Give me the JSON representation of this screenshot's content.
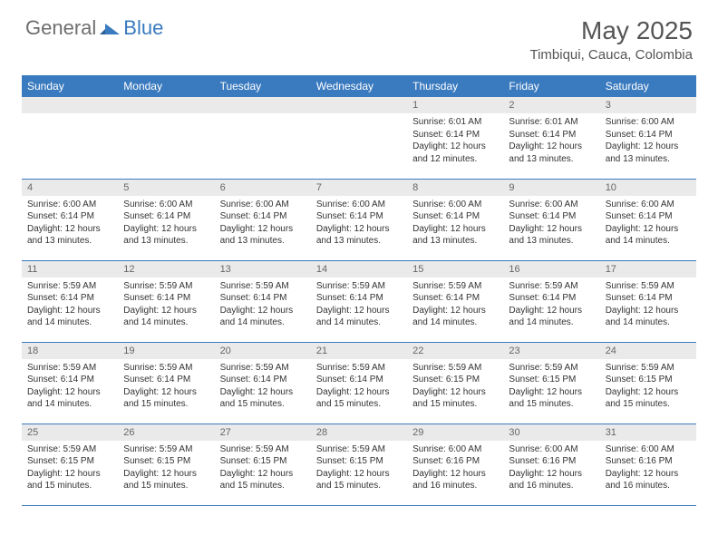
{
  "logo": {
    "text1": "General",
    "text2": "Blue"
  },
  "title": "May 2025",
  "location": "Timbiqui, Cauca, Colombia",
  "colors": {
    "header_bg": "#3a7abf",
    "header_text": "#ffffff",
    "daynum_bg": "#eaeaea",
    "daynum_text": "#666666",
    "body_text": "#333333",
    "divider": "#3a7abf",
    "logo_gray": "#6e6e6e",
    "logo_blue": "#3a7abf"
  },
  "day_headers": [
    "Sunday",
    "Monday",
    "Tuesday",
    "Wednesday",
    "Thursday",
    "Friday",
    "Saturday"
  ],
  "weeks": [
    [
      null,
      null,
      null,
      null,
      {
        "n": "1",
        "sr": "6:01 AM",
        "ss": "6:14 PM",
        "dl": "12 hours and 12 minutes."
      },
      {
        "n": "2",
        "sr": "6:01 AM",
        "ss": "6:14 PM",
        "dl": "12 hours and 13 minutes."
      },
      {
        "n": "3",
        "sr": "6:00 AM",
        "ss": "6:14 PM",
        "dl": "12 hours and 13 minutes."
      }
    ],
    [
      {
        "n": "4",
        "sr": "6:00 AM",
        "ss": "6:14 PM",
        "dl": "12 hours and 13 minutes."
      },
      {
        "n": "5",
        "sr": "6:00 AM",
        "ss": "6:14 PM",
        "dl": "12 hours and 13 minutes."
      },
      {
        "n": "6",
        "sr": "6:00 AM",
        "ss": "6:14 PM",
        "dl": "12 hours and 13 minutes."
      },
      {
        "n": "7",
        "sr": "6:00 AM",
        "ss": "6:14 PM",
        "dl": "12 hours and 13 minutes."
      },
      {
        "n": "8",
        "sr": "6:00 AM",
        "ss": "6:14 PM",
        "dl": "12 hours and 13 minutes."
      },
      {
        "n": "9",
        "sr": "6:00 AM",
        "ss": "6:14 PM",
        "dl": "12 hours and 13 minutes."
      },
      {
        "n": "10",
        "sr": "6:00 AM",
        "ss": "6:14 PM",
        "dl": "12 hours and 14 minutes."
      }
    ],
    [
      {
        "n": "11",
        "sr": "5:59 AM",
        "ss": "6:14 PM",
        "dl": "12 hours and 14 minutes."
      },
      {
        "n": "12",
        "sr": "5:59 AM",
        "ss": "6:14 PM",
        "dl": "12 hours and 14 minutes."
      },
      {
        "n": "13",
        "sr": "5:59 AM",
        "ss": "6:14 PM",
        "dl": "12 hours and 14 minutes."
      },
      {
        "n": "14",
        "sr": "5:59 AM",
        "ss": "6:14 PM",
        "dl": "12 hours and 14 minutes."
      },
      {
        "n": "15",
        "sr": "5:59 AM",
        "ss": "6:14 PM",
        "dl": "12 hours and 14 minutes."
      },
      {
        "n": "16",
        "sr": "5:59 AM",
        "ss": "6:14 PM",
        "dl": "12 hours and 14 minutes."
      },
      {
        "n": "17",
        "sr": "5:59 AM",
        "ss": "6:14 PM",
        "dl": "12 hours and 14 minutes."
      }
    ],
    [
      {
        "n": "18",
        "sr": "5:59 AM",
        "ss": "6:14 PM",
        "dl": "12 hours and 14 minutes."
      },
      {
        "n": "19",
        "sr": "5:59 AM",
        "ss": "6:14 PM",
        "dl": "12 hours and 15 minutes."
      },
      {
        "n": "20",
        "sr": "5:59 AM",
        "ss": "6:14 PM",
        "dl": "12 hours and 15 minutes."
      },
      {
        "n": "21",
        "sr": "5:59 AM",
        "ss": "6:14 PM",
        "dl": "12 hours and 15 minutes."
      },
      {
        "n": "22",
        "sr": "5:59 AM",
        "ss": "6:15 PM",
        "dl": "12 hours and 15 minutes."
      },
      {
        "n": "23",
        "sr": "5:59 AM",
        "ss": "6:15 PM",
        "dl": "12 hours and 15 minutes."
      },
      {
        "n": "24",
        "sr": "5:59 AM",
        "ss": "6:15 PM",
        "dl": "12 hours and 15 minutes."
      }
    ],
    [
      {
        "n": "25",
        "sr": "5:59 AM",
        "ss": "6:15 PM",
        "dl": "12 hours and 15 minutes."
      },
      {
        "n": "26",
        "sr": "5:59 AM",
        "ss": "6:15 PM",
        "dl": "12 hours and 15 minutes."
      },
      {
        "n": "27",
        "sr": "5:59 AM",
        "ss": "6:15 PM",
        "dl": "12 hours and 15 minutes."
      },
      {
        "n": "28",
        "sr": "5:59 AM",
        "ss": "6:15 PM",
        "dl": "12 hours and 15 minutes."
      },
      {
        "n": "29",
        "sr": "6:00 AM",
        "ss": "6:16 PM",
        "dl": "12 hours and 16 minutes."
      },
      {
        "n": "30",
        "sr": "6:00 AM",
        "ss": "6:16 PM",
        "dl": "12 hours and 16 minutes."
      },
      {
        "n": "31",
        "sr": "6:00 AM",
        "ss": "6:16 PM",
        "dl": "12 hours and 16 minutes."
      }
    ]
  ],
  "labels": {
    "sunrise": "Sunrise:",
    "sunset": "Sunset:",
    "daylight": "Daylight:"
  }
}
